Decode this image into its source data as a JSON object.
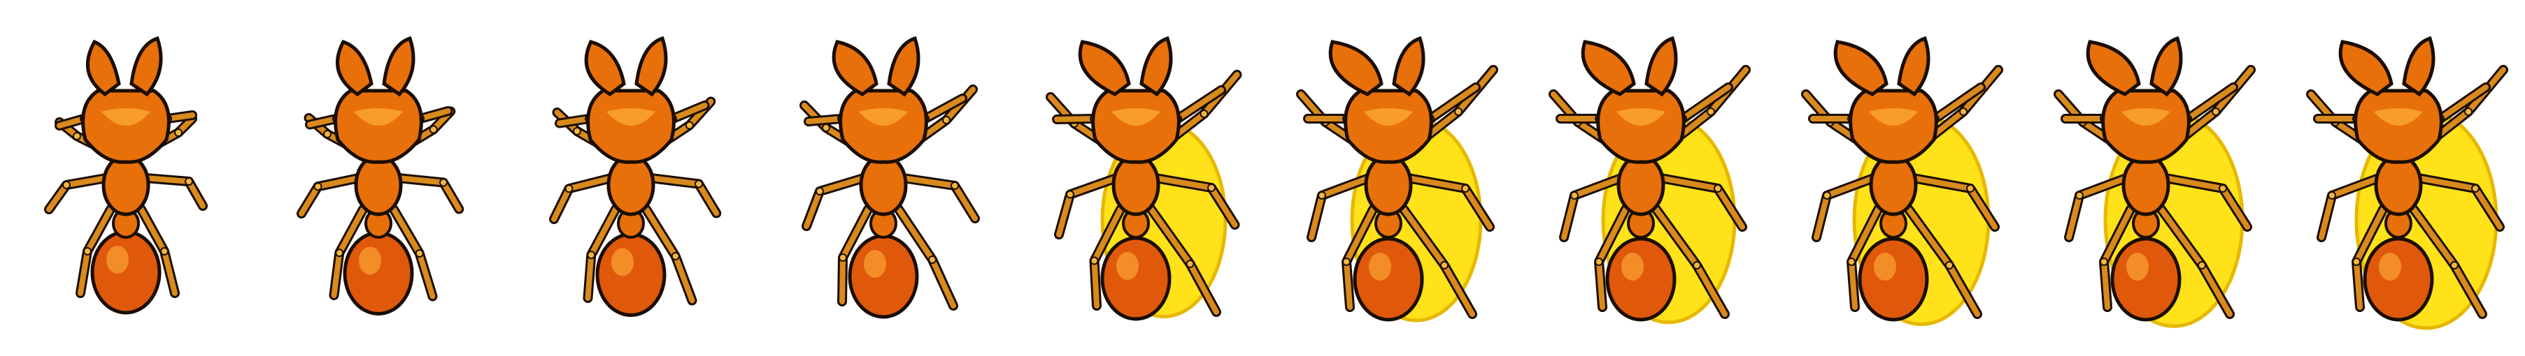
{
  "sprite_sheet": {
    "frame_count": 10,
    "animation": "ant-death",
    "colors": {
      "outline": "#1a0d00",
      "body_orange": "#e8700a",
      "body_highlight": "#ffb13b",
      "body_shadow": "#b34a00",
      "leg": "#d98a1c",
      "leg_joint": "#f2b640",
      "splat_yellow": "#ffe21a",
      "splat_edge": "#e6b800",
      "abdomen": "#e0580a"
    },
    "frames": [
      {
        "index": 0,
        "splat": 0.0,
        "spread": 0.0
      },
      {
        "index": 1,
        "splat": 0.0,
        "spread": 0.15
      },
      {
        "index": 2,
        "splat": 0.0,
        "spread": 0.35
      },
      {
        "index": 3,
        "splat": 0.0,
        "spread": 0.6
      },
      {
        "index": 4,
        "splat": 0.7,
        "spread": 0.9
      },
      {
        "index": 5,
        "splat": 0.8,
        "spread": 1.0
      },
      {
        "index": 6,
        "splat": 0.85,
        "spread": 1.0
      },
      {
        "index": 7,
        "splat": 0.9,
        "spread": 1.0
      },
      {
        "index": 8,
        "splat": 0.95,
        "spread": 1.0
      },
      {
        "index": 9,
        "splat": 1.0,
        "spread": 1.0
      }
    ]
  }
}
